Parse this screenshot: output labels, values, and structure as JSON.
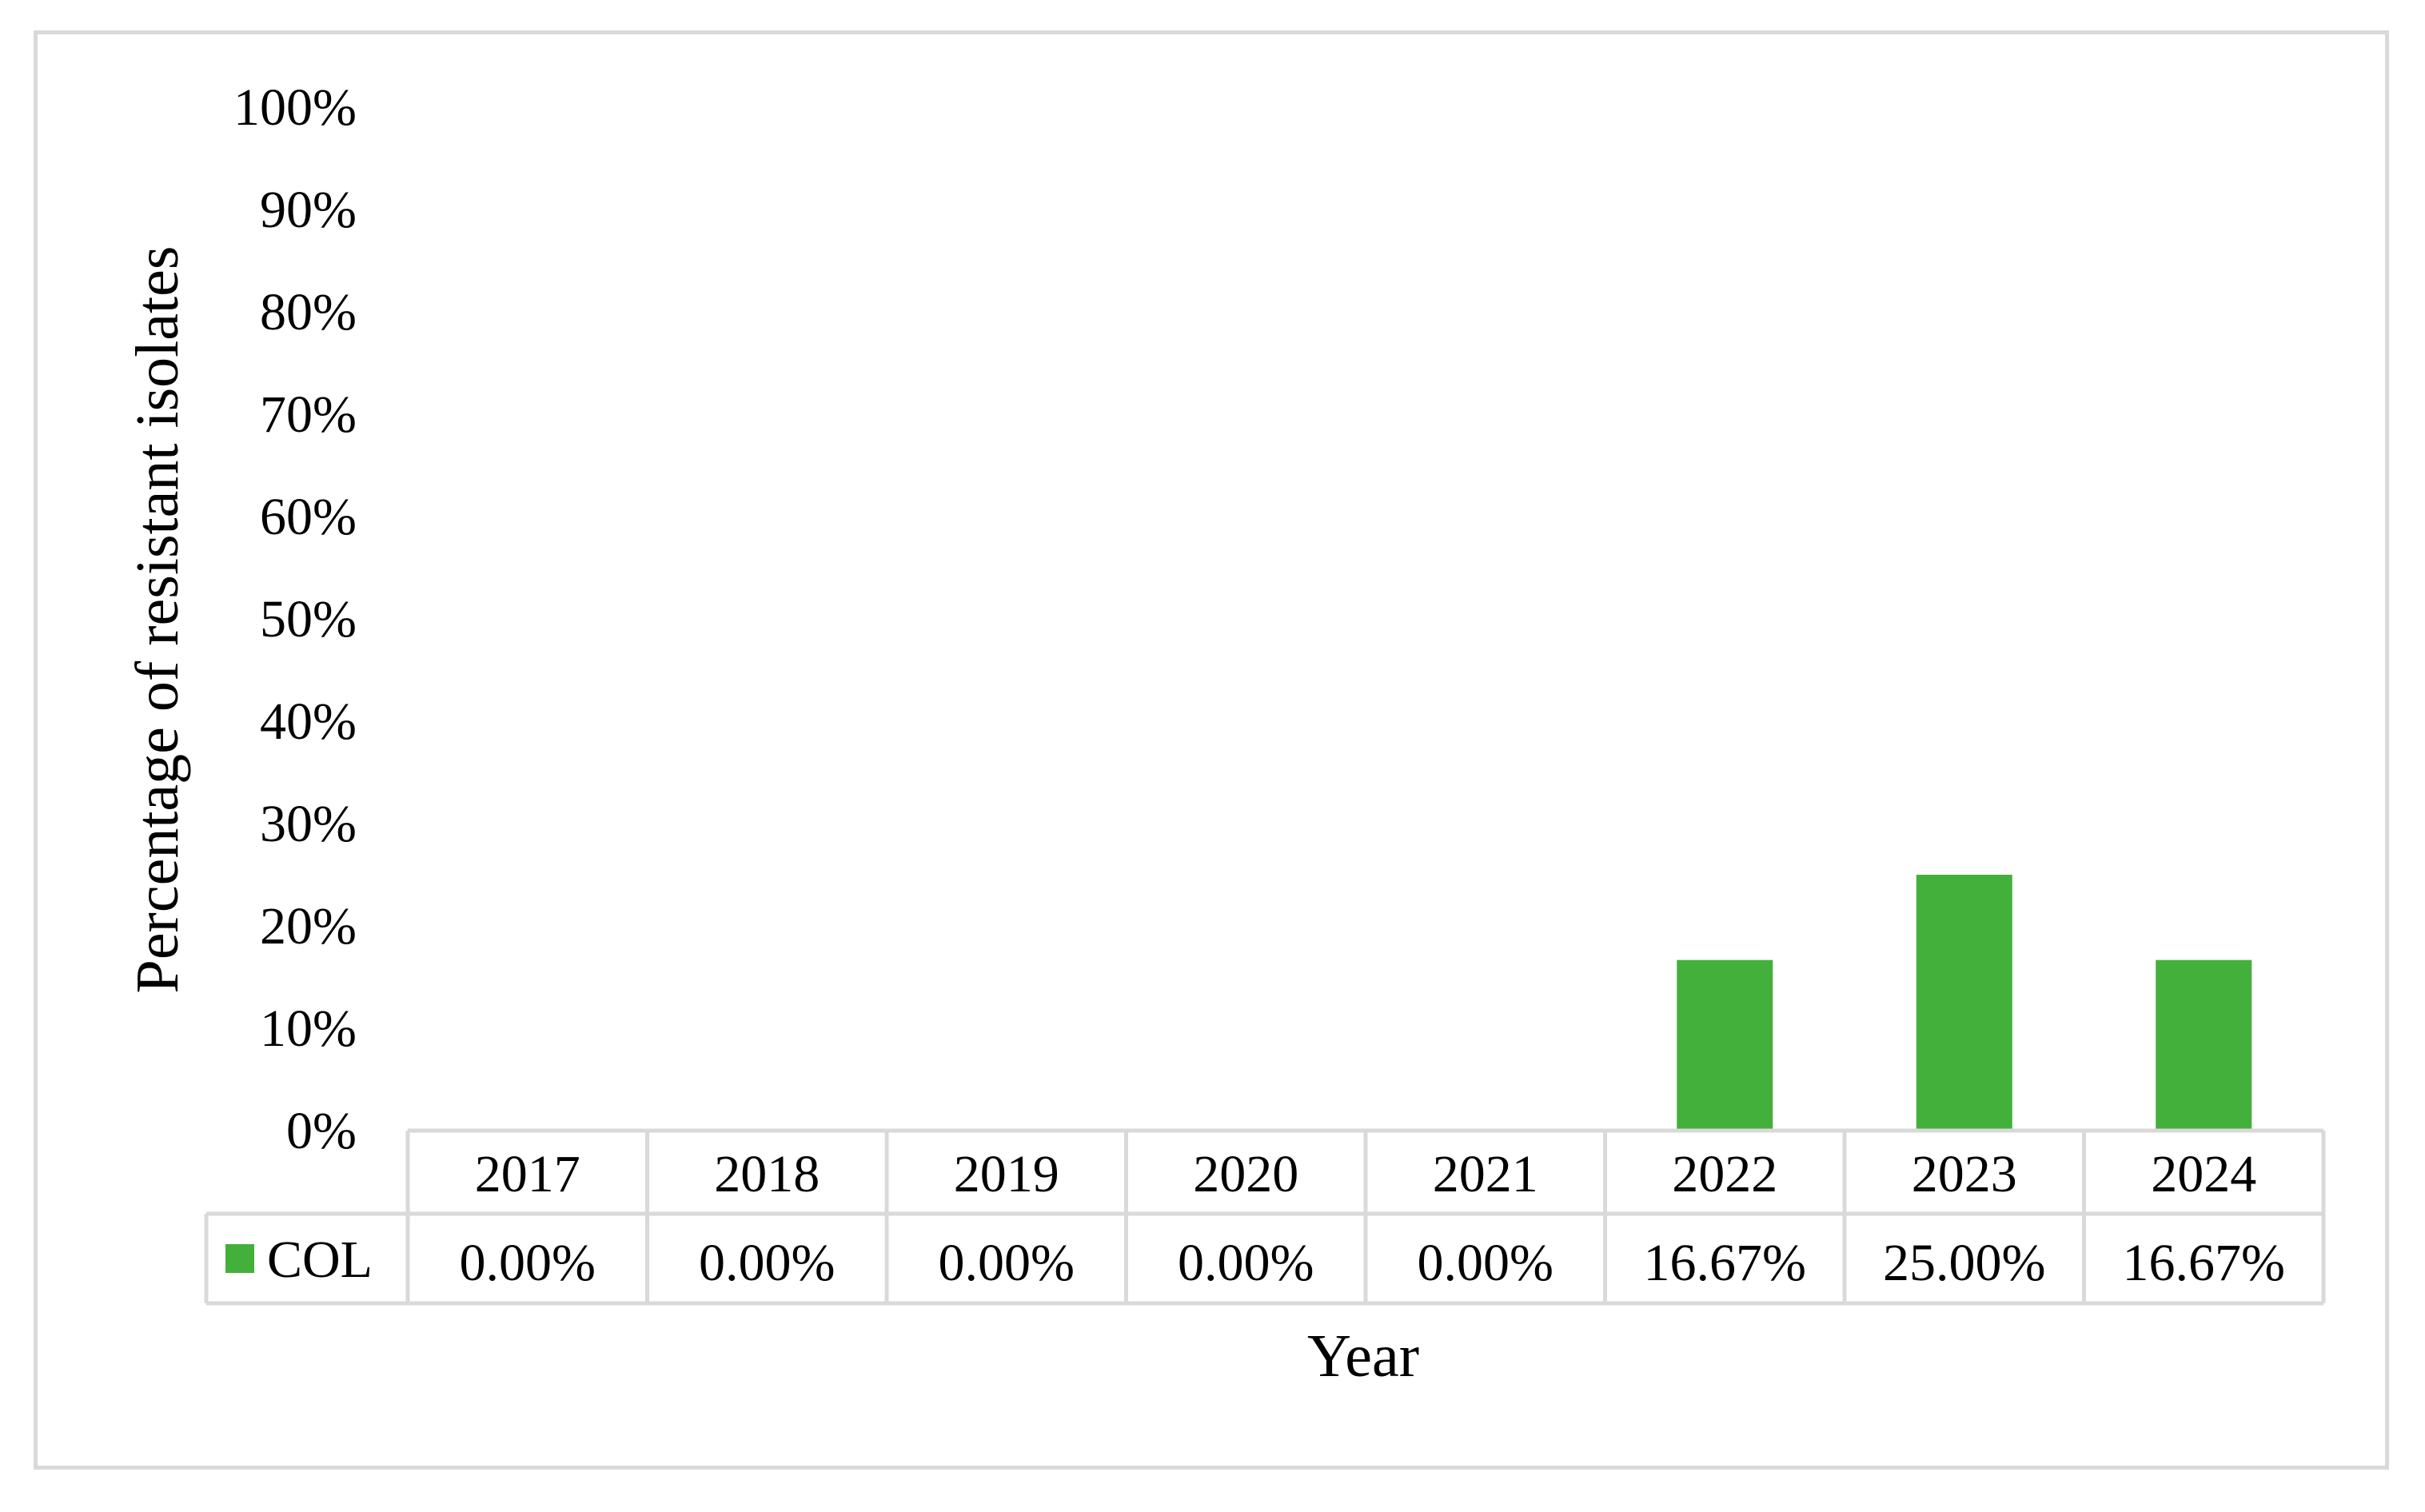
{
  "chart_data": {
    "type": "bar",
    "categories": [
      "2017",
      "2018",
      "2019",
      "2020",
      "2021",
      "2022",
      "2023",
      "2024"
    ],
    "series": [
      {
        "name": "COL",
        "values": [
          0.0,
          0.0,
          0.0,
          0.0,
          0.0,
          16.67,
          25.0,
          16.67
        ],
        "value_labels": [
          "0.00%",
          "0.00%",
          "0.00%",
          "0.00%",
          "0.00%",
          "16.67%",
          "25.00%",
          "16.67%"
        ],
        "color": "#43b03c"
      }
    ],
    "xlabel": "Year",
    "ylabel": "Percentage of resistant isolates",
    "ylim": [
      0,
      100
    ],
    "yticks": [
      0,
      10,
      20,
      30,
      40,
      50,
      60,
      70,
      80,
      90,
      100
    ],
    "ytick_labels": [
      "0%",
      "10%",
      "20%",
      "30%",
      "40%",
      "50%",
      "60%",
      "70%",
      "80%",
      "90%",
      "100%"
    ],
    "grid": false,
    "legend": "data-table",
    "colors": {
      "table_border": "#d9d9d9",
      "frame_border": "#d9d9d9",
      "text": "#000000"
    }
  }
}
